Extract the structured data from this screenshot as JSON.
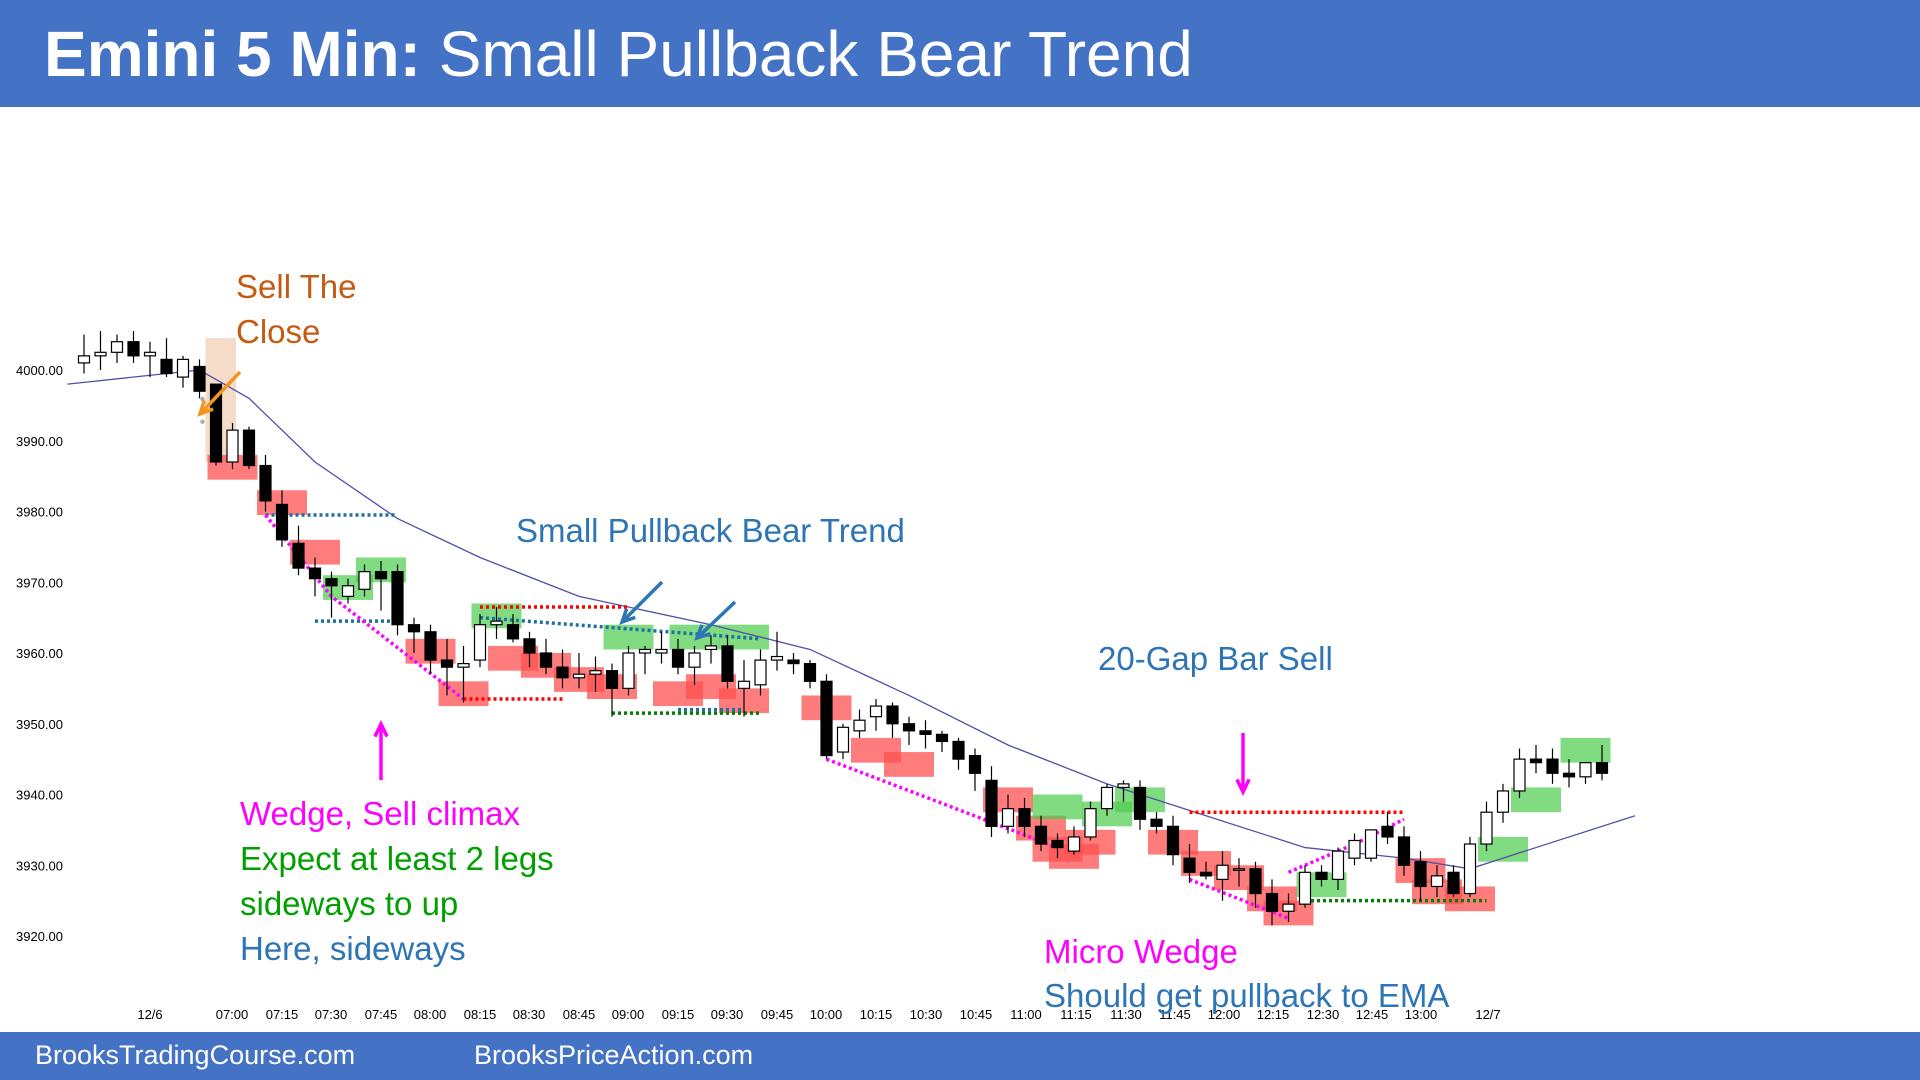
{
  "header": {
    "title_bold": "Emini 5 Min:",
    "title_rest": " Small Pullback Bear Trend",
    "background": "#4472c4"
  },
  "footer": {
    "left_link": "BrooksTradingCourse.com",
    "right_link": "BrooksPriceAction.com"
  },
  "annotations": {
    "sell_the_close_1": "Sell The",
    "sell_the_close_2": "Close",
    "small_pullback": "Small Pullback Bear Trend",
    "gap_bar_sell": "20-Gap Bar Sell",
    "wedge_line1": "Wedge, Sell climax",
    "wedge_line2": "Expect at least 2 legs",
    "wedge_line3": "sideways to up",
    "wedge_line4": "Here, sideways",
    "micro_wedge": "Micro Wedge",
    "pullback_ema": "Should get pullback to EMA"
  },
  "colors": {
    "orange_text": "#c55a11",
    "blue_text": "#2e75b6",
    "magenta": "#ff00ff",
    "green_text": "#00a000",
    "bear_box": "#ff5050",
    "bull_box": "#4ccc4c",
    "ema": "#5050aa"
  },
  "chart_data": {
    "type": "candlestick",
    "title": "",
    "ylim": [
      3915,
      4010
    ],
    "y_ticks": [
      "4000.00",
      "3990.00",
      "3980.00",
      "3970.00",
      "3960.00",
      "3950.00",
      "3940.00",
      "3930.00",
      "3920.00"
    ],
    "x_ticks": [
      "12/6",
      "07:00",
      "07:15",
      "07:30",
      "07:45",
      "08:00",
      "08:15",
      "08:30",
      "08:45",
      "09:00",
      "09:15",
      "09:30",
      "09:45",
      "10:00",
      "10:15",
      "10:30",
      "10:45",
      "11:00",
      "11:15",
      "11:30",
      "11:45",
      "12:00",
      "12:15",
      "12:30",
      "12:45",
      "13:00",
      "12/7"
    ],
    "bars": [
      {
        "o": 4001.0,
        "h": 4005.0,
        "l": 3999.5,
        "c": 4002.0
      },
      {
        "o": 4002.0,
        "h": 4005.5,
        "l": 4000.0,
        "c": 4002.5
      },
      {
        "o": 4002.5,
        "h": 4005.0,
        "l": 4001.0,
        "c": 4004.0
      },
      {
        "o": 4004.0,
        "h": 4005.5,
        "l": 4001.0,
        "c": 4002.0
      },
      {
        "o": 4002.0,
        "h": 4004.0,
        "l": 3999.0,
        "c": 4002.5
      },
      {
        "o": 4001.5,
        "h": 4004.5,
        "l": 3999.0,
        "c": 3999.5
      },
      {
        "o": 3999.0,
        "h": 4002.0,
        "l": 3997.5,
        "c": 4001.5
      },
      {
        "o": 4000.5,
        "h": 4001.5,
        "l": 3996.0,
        "c": 3997.0
      },
      {
        "o": 3998.0,
        "h": 3998.0,
        "l": 3986.5,
        "c": 3987.0
      },
      {
        "o": 3987.0,
        "h": 3992.5,
        "l": 3986.0,
        "c": 3991.5
      },
      {
        "o": 3991.5,
        "h": 3992.0,
        "l": 3986.0,
        "c": 3986.5
      },
      {
        "o": 3986.5,
        "h": 3988.0,
        "l": 3980.0,
        "c": 3981.5
      },
      {
        "o": 3981.0,
        "h": 3983.0,
        "l": 3975.0,
        "c": 3976.0
      },
      {
        "o": 3975.5,
        "h": 3978.0,
        "l": 3971.0,
        "c": 3972.0
      },
      {
        "o": 3972.0,
        "h": 3973.5,
        "l": 3968.0,
        "c": 3970.5
      },
      {
        "o": 3970.5,
        "h": 3971.5,
        "l": 3965.0,
        "c": 3969.5
      },
      {
        "o": 3968.0,
        "h": 3970.5,
        "l": 3967.0,
        "c": 3969.5
      },
      {
        "o": 3969.0,
        "h": 3972.5,
        "l": 3968.0,
        "c": 3971.5
      },
      {
        "o": 3971.5,
        "h": 3973.0,
        "l": 3966.0,
        "c": 3970.5
      },
      {
        "o": 3971.5,
        "h": 3972.5,
        "l": 3962.5,
        "c": 3964.0
      },
      {
        "o": 3964.0,
        "h": 3965.0,
        "l": 3960.0,
        "c": 3963.0
      },
      {
        "o": 3963.0,
        "h": 3964.0,
        "l": 3957.0,
        "c": 3959.0
      },
      {
        "o": 3959.0,
        "h": 3962.0,
        "l": 3954.0,
        "c": 3958.0
      },
      {
        "o": 3958.0,
        "h": 3961.0,
        "l": 3953.0,
        "c": 3958.5
      },
      {
        "o": 3959.0,
        "h": 3965.5,
        "l": 3958.0,
        "c": 3964.0
      },
      {
        "o": 3964.0,
        "h": 3966.5,
        "l": 3962.0,
        "c": 3964.5
      },
      {
        "o": 3964.0,
        "h": 3965.5,
        "l": 3961.5,
        "c": 3962.0
      },
      {
        "o": 3962.0,
        "h": 3963.0,
        "l": 3958.0,
        "c": 3960.0
      },
      {
        "o": 3960.0,
        "h": 3962.0,
        "l": 3957.0,
        "c": 3958.0
      },
      {
        "o": 3958.0,
        "h": 3960.5,
        "l": 3955.0,
        "c": 3956.5
      },
      {
        "o": 3956.5,
        "h": 3960.0,
        "l": 3955.0,
        "c": 3957.0
      },
      {
        "o": 3957.0,
        "h": 3959.5,
        "l": 3954.5,
        "c": 3957.5
      },
      {
        "o": 3957.5,
        "h": 3958.5,
        "l": 3951.0,
        "c": 3955.0
      },
      {
        "o": 3955.0,
        "h": 3961.0,
        "l": 3954.0,
        "c": 3960.0
      },
      {
        "o": 3960.0,
        "h": 3961.0,
        "l": 3957.0,
        "c": 3960.5
      },
      {
        "o": 3960.0,
        "h": 3963.0,
        "l": 3958.5,
        "c": 3960.5
      },
      {
        "o": 3960.5,
        "h": 3962.0,
        "l": 3957.0,
        "c": 3958.0
      },
      {
        "o": 3958.0,
        "h": 3961.0,
        "l": 3955.5,
        "c": 3960.0
      },
      {
        "o": 3960.5,
        "h": 3962.5,
        "l": 3958.5,
        "c": 3961.0
      },
      {
        "o": 3961.0,
        "h": 3962.5,
        "l": 3955.0,
        "c": 3956.0
      },
      {
        "o": 3955.0,
        "h": 3959.0,
        "l": 3951.0,
        "c": 3956.0
      },
      {
        "o": 3955.5,
        "h": 3960.5,
        "l": 3954.0,
        "c": 3959.0
      },
      {
        "o": 3959.0,
        "h": 3963.0,
        "l": 3957.5,
        "c": 3959.5
      },
      {
        "o": 3959.0,
        "h": 3960.0,
        "l": 3957.0,
        "c": 3958.5
      },
      {
        "o": 3958.5,
        "h": 3959.0,
        "l": 3955.0,
        "c": 3956.0
      },
      {
        "o": 3956.0,
        "h": 3957.0,
        "l": 3945.0,
        "c": 3945.5
      },
      {
        "o": 3946.0,
        "h": 3950.0,
        "l": 3945.0,
        "c": 3949.5
      },
      {
        "o": 3949.0,
        "h": 3952.0,
        "l": 3948.0,
        "c": 3950.5
      },
      {
        "o": 3951.0,
        "h": 3953.5,
        "l": 3949.0,
        "c": 3952.5
      },
      {
        "o": 3952.5,
        "h": 3953.0,
        "l": 3948.0,
        "c": 3950.0
      },
      {
        "o": 3950.0,
        "h": 3951.0,
        "l": 3947.0,
        "c": 3949.0
      },
      {
        "o": 3949.0,
        "h": 3950.5,
        "l": 3946.5,
        "c": 3948.5
      },
      {
        "o": 3948.5,
        "h": 3949.0,
        "l": 3946.0,
        "c": 3947.5
      },
      {
        "o": 3947.5,
        "h": 3948.0,
        "l": 3943.5,
        "c": 3945.0
      },
      {
        "o": 3945.5,
        "h": 3946.5,
        "l": 3940.5,
        "c": 3943.0
      },
      {
        "o": 3942.0,
        "h": 3944.0,
        "l": 3934.0,
        "c": 3935.5
      },
      {
        "o": 3935.5,
        "h": 3940.0,
        "l": 3934.5,
        "c": 3938.0
      },
      {
        "o": 3938.0,
        "h": 3939.5,
        "l": 3934.0,
        "c": 3935.5
      },
      {
        "o": 3935.5,
        "h": 3937.0,
        "l": 3932.0,
        "c": 3933.0
      },
      {
        "o": 3933.5,
        "h": 3934.5,
        "l": 3931.0,
        "c": 3932.5
      },
      {
        "o": 3932.0,
        "h": 3935.5,
        "l": 3931.5,
        "c": 3934.0
      },
      {
        "o": 3934.0,
        "h": 3939.0,
        "l": 3933.5,
        "c": 3938.0
      },
      {
        "o": 3938.0,
        "h": 3941.5,
        "l": 3937.0,
        "c": 3941.0
      },
      {
        "o": 3941.0,
        "h": 3942.0,
        "l": 3939.0,
        "c": 3941.5
      },
      {
        "o": 3941.0,
        "h": 3942.0,
        "l": 3935.0,
        "c": 3936.5
      },
      {
        "o": 3936.5,
        "h": 3937.5,
        "l": 3934.5,
        "c": 3935.5
      },
      {
        "o": 3935.5,
        "h": 3937.0,
        "l": 3930.0,
        "c": 3931.5
      },
      {
        "o": 3931.0,
        "h": 3933.0,
        "l": 3927.5,
        "c": 3929.0
      },
      {
        "o": 3929.0,
        "h": 3930.5,
        "l": 3928.0,
        "c": 3928.5
      },
      {
        "o": 3928.0,
        "h": 3932.0,
        "l": 3925.0,
        "c": 3930.0
      },
      {
        "o": 3929.5,
        "h": 3931.0,
        "l": 3927.0,
        "c": 3929.5
      },
      {
        "o": 3929.5,
        "h": 3930.5,
        "l": 3924.0,
        "c": 3926.0
      },
      {
        "o": 3926.0,
        "h": 3928.0,
        "l": 3921.5,
        "c": 3923.5
      },
      {
        "o": 3923.5,
        "h": 3926.0,
        "l": 3922.0,
        "c": 3924.5
      },
      {
        "o": 3924.5,
        "h": 3930.0,
        "l": 3924.0,
        "c": 3929.0
      },
      {
        "o": 3929.0,
        "h": 3930.0,
        "l": 3927.0,
        "c": 3928.0
      },
      {
        "o": 3928.0,
        "h": 3932.5,
        "l": 3926.5,
        "c": 3932.0
      },
      {
        "o": 3931.0,
        "h": 3934.5,
        "l": 3930.0,
        "c": 3933.5
      },
      {
        "o": 3931.0,
        "h": 3935.0,
        "l": 3930.5,
        "c": 3935.0
      },
      {
        "o": 3935.5,
        "h": 3937.5,
        "l": 3933.0,
        "c": 3934.0
      },
      {
        "o": 3934.0,
        "h": 3935.5,
        "l": 3928.5,
        "c": 3930.0
      },
      {
        "o": 3930.5,
        "h": 3932.0,
        "l": 3925.0,
        "c": 3927.0
      },
      {
        "o": 3927.0,
        "h": 3930.0,
        "l": 3925.5,
        "c": 3928.5
      },
      {
        "o": 3929.0,
        "h": 3930.0,
        "l": 3925.5,
        "c": 3926.0
      },
      {
        "o": 3926.0,
        "h": 3934.0,
        "l": 3925.5,
        "c": 3933.0
      },
      {
        "o": 3933.0,
        "h": 3939.0,
        "l": 3932.0,
        "c": 3937.5
      },
      {
        "o": 3937.5,
        "h": 3941.5,
        "l": 3936.0,
        "c": 3940.5
      },
      {
        "o": 3940.5,
        "h": 3946.5,
        "l": 3939.5,
        "c": 3945.0
      },
      {
        "o": 3945.0,
        "h": 3947.0,
        "l": 3943.0,
        "c": 3944.5
      },
      {
        "o": 3945.0,
        "h": 3946.5,
        "l": 3941.5,
        "c": 3943.0
      },
      {
        "o": 3943.0,
        "h": 3945.0,
        "l": 3941.0,
        "c": 3942.5
      },
      {
        "o": 3942.5,
        "h": 3944.5,
        "l": 3941.5,
        "c": 3944.5
      },
      {
        "o": 3944.5,
        "h": 3947.0,
        "l": 3942.0,
        "c": 3943.0
      }
    ],
    "ema": [
      {
        "bar": -1,
        "v": 3998.0
      },
      {
        "bar": 7,
        "v": 4000.0
      },
      {
        "bar": 10,
        "v": 3996.0
      },
      {
        "bar": 14,
        "v": 3987.0
      },
      {
        "bar": 19,
        "v": 3979.0
      },
      {
        "bar": 24,
        "v": 3973.5
      },
      {
        "bar": 30,
        "v": 3968.0
      },
      {
        "bar": 38,
        "v": 3964.0
      },
      {
        "bar": 44,
        "v": 3960.5
      },
      {
        "bar": 50,
        "v": 3954.0
      },
      {
        "bar": 56,
        "v": 3947.0
      },
      {
        "bar": 62,
        "v": 3941.5
      },
      {
        "bar": 68,
        "v": 3937.0
      },
      {
        "bar": 74,
        "v": 3932.5
      },
      {
        "bar": 80,
        "v": 3931.0
      },
      {
        "bar": 84,
        "v": 3929.5
      },
      {
        "bar": 88,
        "v": 3932.5
      },
      {
        "bar": 94,
        "v": 3937.0
      }
    ],
    "dotted_lines": [
      {
        "color": "#1f6fa0",
        "pts": [
          [
            11,
            3979.5
          ],
          [
            19,
            3979.5
          ]
        ]
      },
      {
        "color": "#1f6fa0",
        "pts": [
          [
            14,
            3964.5
          ],
          [
            19,
            3964.5
          ]
        ]
      },
      {
        "color": "#ff00ff",
        "pts": [
          [
            11,
            3979.5
          ],
          [
            15,
            3968
          ],
          [
            23,
            3953.5
          ]
        ]
      },
      {
        "color": "#ff0000",
        "pts": [
          [
            23,
            3953.5
          ],
          [
            29,
            3953.5
          ]
        ]
      },
      {
        "color": "#ff0000",
        "pts": [
          [
            24,
            3966.5
          ],
          [
            33,
            3966.5
          ]
        ]
      },
      {
        "color": "#1f6fa0",
        "pts": [
          [
            24,
            3965
          ],
          [
            41,
            3962
          ]
        ]
      },
      {
        "color": "#008000",
        "pts": [
          [
            32,
            3951.5
          ],
          [
            41,
            3951.5
          ]
        ]
      },
      {
        "color": "#1f6fa0",
        "pts": [
          [
            36,
            3952
          ],
          [
            40,
            3952
          ]
        ]
      },
      {
        "color": "#ff00ff",
        "pts": [
          [
            45,
            3945
          ],
          [
            59,
            3932.5
          ]
        ]
      },
      {
        "color": "#ff00ff",
        "pts": [
          [
            67,
            3928
          ],
          [
            73,
            3922.5
          ]
        ]
      },
      {
        "color": "#ff0000",
        "pts": [
          [
            67,
            3937.5
          ],
          [
            80,
            3937.5
          ]
        ]
      },
      {
        "color": "#ff00ff",
        "pts": [
          [
            73,
            3929
          ],
          [
            77,
            3933
          ],
          [
            80,
            3936.5
          ]
        ]
      },
      {
        "color": "#008000",
        "pts": [
          [
            74,
            3925
          ],
          [
            85,
            3925
          ]
        ]
      }
    ],
    "red_boxes": [
      [
        9,
        3988,
        3984.5
      ],
      [
        12,
        3983,
        3979.5
      ],
      [
        14,
        3976,
        3972.5
      ],
      [
        21,
        3962,
        3958.5
      ],
      [
        23,
        3956,
        3952.5
      ],
      [
        26,
        3961,
        3957.5
      ],
      [
        28,
        3960,
        3956.5
      ],
      [
        30,
        3958,
        3954.5
      ],
      [
        32,
        3957,
        3953.5
      ],
      [
        36,
        3956,
        3952.5
      ],
      [
        38,
        3957,
        3953.5
      ],
      [
        40,
        3955,
        3951.5
      ],
      [
        45,
        3954,
        3950.5
      ],
      [
        48,
        3948,
        3944.5
      ],
      [
        50,
        3946,
        3942.5
      ],
      [
        56,
        3941,
        3937.5
      ],
      [
        58,
        3937,
        3933.5
      ],
      [
        59,
        3934,
        3930.5
      ],
      [
        60,
        3933,
        3929.5
      ],
      [
        61,
        3935,
        3931.5
      ],
      [
        66,
        3935,
        3931.5
      ],
      [
        68,
        3932,
        3928.5
      ],
      [
        70,
        3930,
        3926.5
      ],
      [
        72,
        3927,
        3923.5
      ],
      [
        73,
        3925,
        3921.5
      ],
      [
        81,
        3931,
        3927.5
      ],
      [
        82,
        3928,
        3924.5
      ],
      [
        84,
        3927,
        3923.5
      ]
    ],
    "green_boxes": [
      [
        16,
        3971,
        3967.5
      ],
      [
        18,
        3973.5,
        3970
      ],
      [
        25,
        3967,
        3963.5
      ],
      [
        33,
        3964,
        3960.5
      ],
      [
        37,
        3964,
        3960.5
      ],
      [
        40,
        3964,
        3960.5
      ],
      [
        59,
        3940,
        3936.5
      ],
      [
        62,
        3939,
        3935.5
      ],
      [
        64,
        3941,
        3937.5
      ],
      [
        75,
        3929,
        3925.5
      ],
      [
        86,
        3934,
        3930.5
      ],
      [
        88,
        3941,
        3937.5
      ],
      [
        91,
        3948,
        3944.5
      ]
    ],
    "highlight_bar": [
      7,
      8
    ]
  }
}
